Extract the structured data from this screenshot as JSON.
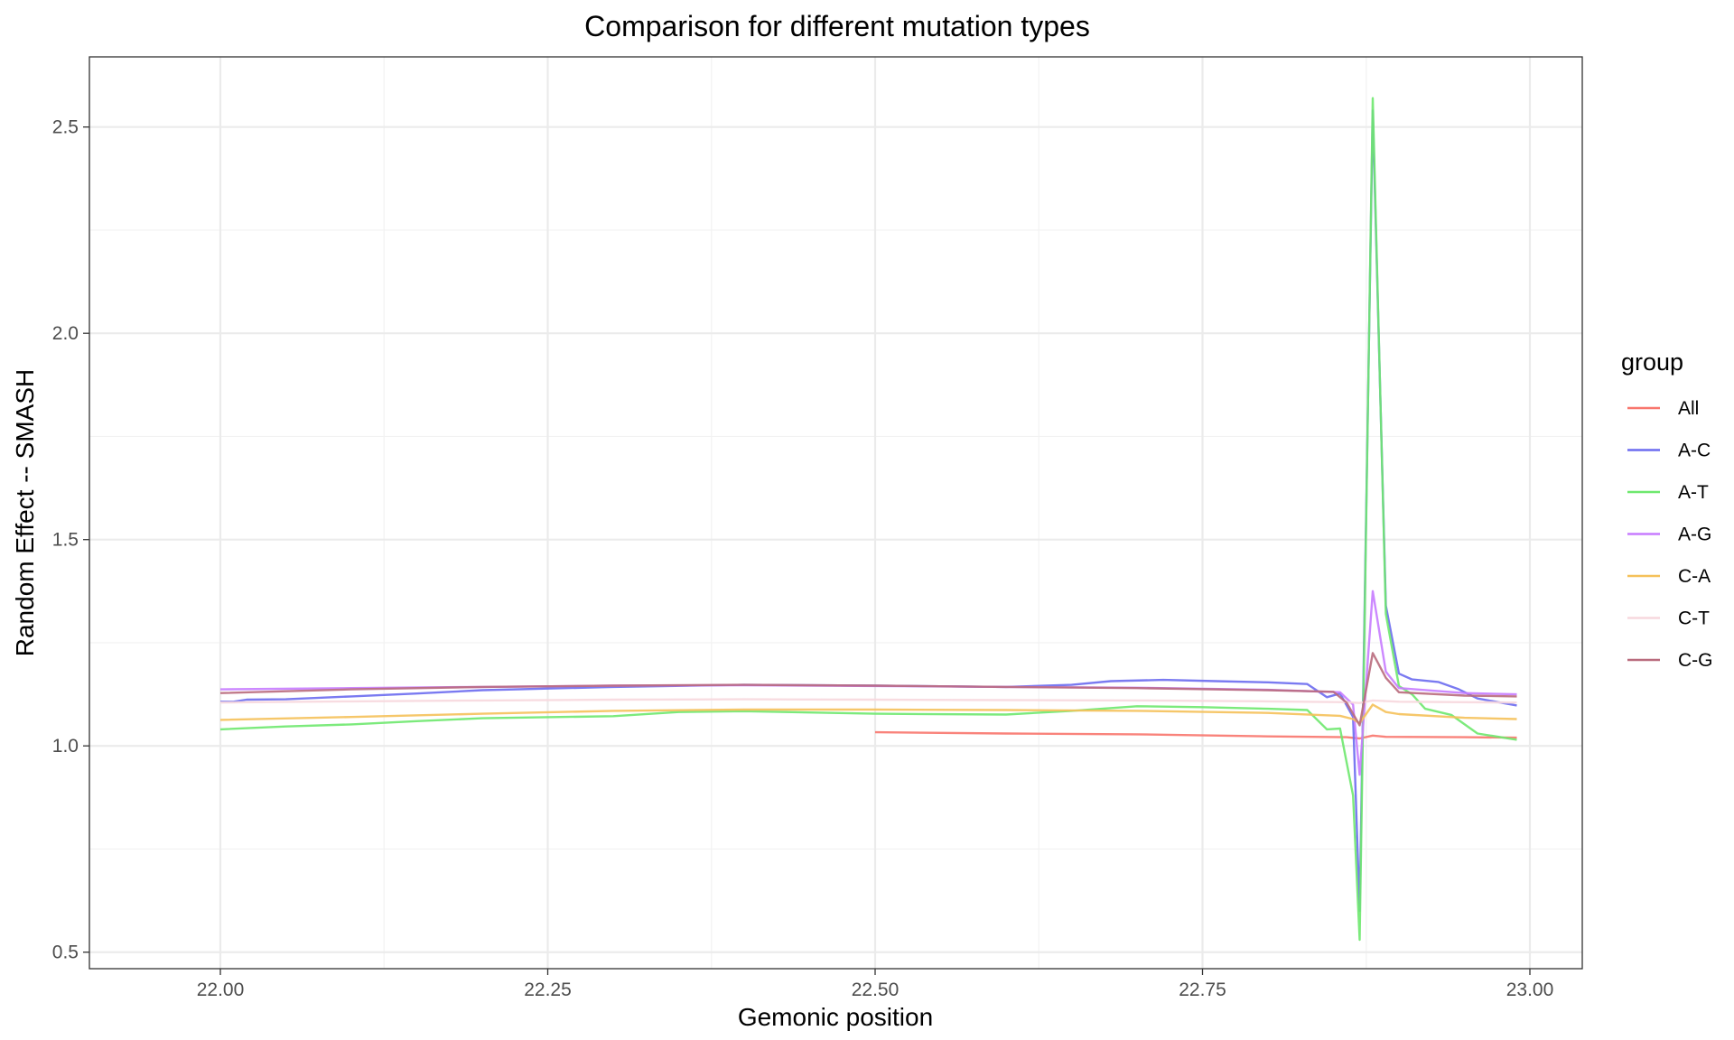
{
  "chart_data": {
    "type": "line",
    "title": "Comparison for different mutation types",
    "xlabel": "Gemonic position",
    "ylabel": "Random Effect -- SMASH",
    "xlim": [
      21.9,
      23.04
    ],
    "ylim": [
      0.46,
      2.67
    ],
    "x_ticks": [
      22.0,
      22.25,
      22.5,
      22.75,
      23.0
    ],
    "x_tick_labels": [
      "22.00",
      "22.25",
      "22.50",
      "22.75",
      "23.00"
    ],
    "y_ticks": [
      0.5,
      1.0,
      1.5,
      2.0,
      2.5
    ],
    "y_tick_labels": [
      "0.5",
      "1.0",
      "1.5",
      "2.0",
      "2.5"
    ],
    "grid": true,
    "legend": {
      "title": "group",
      "position": "right"
    },
    "series": [
      {
        "name": "All",
        "color": "#F8766D",
        "points": [
          [
            22.5,
            1.033
          ],
          [
            22.6,
            1.03
          ],
          [
            22.7,
            1.028
          ],
          [
            22.8,
            1.023
          ],
          [
            22.86,
            1.021
          ],
          [
            22.87,
            1.018
          ],
          [
            22.88,
            1.025
          ],
          [
            22.89,
            1.022
          ],
          [
            22.95,
            1.021
          ],
          [
            22.99,
            1.02
          ]
        ]
      },
      {
        "name": "A-C",
        "color": "#6C6CF0",
        "points": [
          [
            22.0,
            1.107
          ],
          [
            22.01,
            1.107
          ],
          [
            22.02,
            1.112
          ],
          [
            22.05,
            1.113
          ],
          [
            22.1,
            1.12
          ],
          [
            22.15,
            1.127
          ],
          [
            22.2,
            1.135
          ],
          [
            22.3,
            1.143
          ],
          [
            22.4,
            1.148
          ],
          [
            22.5,
            1.146
          ],
          [
            22.6,
            1.143
          ],
          [
            22.65,
            1.148
          ],
          [
            22.68,
            1.157
          ],
          [
            22.72,
            1.16
          ],
          [
            22.76,
            1.157
          ],
          [
            22.8,
            1.154
          ],
          [
            22.83,
            1.15
          ],
          [
            22.845,
            1.118
          ],
          [
            22.855,
            1.127
          ],
          [
            22.865,
            1.07
          ],
          [
            22.87,
            0.6
          ],
          [
            22.88,
            2.54
          ],
          [
            22.89,
            1.34
          ],
          [
            22.9,
            1.175
          ],
          [
            22.91,
            1.161
          ],
          [
            22.93,
            1.155
          ],
          [
            22.945,
            1.138
          ],
          [
            22.96,
            1.115
          ],
          [
            22.99,
            1.098
          ]
        ]
      },
      {
        "name": "A-T",
        "color": "#6EE86E",
        "points": [
          [
            22.0,
            1.04
          ],
          [
            22.05,
            1.047
          ],
          [
            22.1,
            1.052
          ],
          [
            22.15,
            1.06
          ],
          [
            22.2,
            1.067
          ],
          [
            22.3,
            1.072
          ],
          [
            22.35,
            1.082
          ],
          [
            22.4,
            1.084
          ],
          [
            22.5,
            1.078
          ],
          [
            22.6,
            1.076
          ],
          [
            22.65,
            1.085
          ],
          [
            22.7,
            1.096
          ],
          [
            22.75,
            1.094
          ],
          [
            22.8,
            1.09
          ],
          [
            22.83,
            1.087
          ],
          [
            22.845,
            1.04
          ],
          [
            22.855,
            1.042
          ],
          [
            22.865,
            0.88
          ],
          [
            22.87,
            0.53
          ],
          [
            22.88,
            2.57
          ],
          [
            22.89,
            1.32
          ],
          [
            22.9,
            1.145
          ],
          [
            22.91,
            1.125
          ],
          [
            22.92,
            1.09
          ],
          [
            22.94,
            1.075
          ],
          [
            22.96,
            1.03
          ],
          [
            22.99,
            1.015
          ]
        ]
      },
      {
        "name": "A-G",
        "color": "#C77CFF",
        "points": [
          [
            22.0,
            1.137
          ],
          [
            22.1,
            1.14
          ],
          [
            22.2,
            1.143
          ],
          [
            22.3,
            1.146
          ],
          [
            22.4,
            1.147
          ],
          [
            22.5,
            1.145
          ],
          [
            22.6,
            1.143
          ],
          [
            22.7,
            1.141
          ],
          [
            22.8,
            1.136
          ],
          [
            22.855,
            1.13
          ],
          [
            22.865,
            1.1
          ],
          [
            22.87,
            0.93
          ],
          [
            22.88,
            1.375
          ],
          [
            22.89,
            1.18
          ],
          [
            22.9,
            1.14
          ],
          [
            22.95,
            1.128
          ],
          [
            22.99,
            1.125
          ]
        ]
      },
      {
        "name": "C-A",
        "color": "#F5C15A",
        "points": [
          [
            22.0,
            1.063
          ],
          [
            22.1,
            1.07
          ],
          [
            22.2,
            1.078
          ],
          [
            22.3,
            1.085
          ],
          [
            22.4,
            1.088
          ],
          [
            22.5,
            1.088
          ],
          [
            22.6,
            1.087
          ],
          [
            22.7,
            1.085
          ],
          [
            22.8,
            1.08
          ],
          [
            22.855,
            1.073
          ],
          [
            22.865,
            1.065
          ],
          [
            22.87,
            1.055
          ],
          [
            22.88,
            1.1
          ],
          [
            22.89,
            1.082
          ],
          [
            22.9,
            1.077
          ],
          [
            22.95,
            1.068
          ],
          [
            22.99,
            1.065
          ]
        ]
      },
      {
        "name": "C-T",
        "color": "#F7D8DE",
        "points": [
          [
            22.0,
            1.105
          ],
          [
            22.1,
            1.108
          ],
          [
            22.2,
            1.11
          ],
          [
            22.3,
            1.112
          ],
          [
            22.4,
            1.113
          ],
          [
            22.5,
            1.112
          ],
          [
            22.6,
            1.111
          ],
          [
            22.7,
            1.11
          ],
          [
            22.8,
            1.108
          ],
          [
            22.86,
            1.106
          ],
          [
            22.87,
            1.104
          ],
          [
            22.88,
            1.11
          ],
          [
            22.9,
            1.107
          ],
          [
            22.99,
            1.105
          ]
        ]
      },
      {
        "name": "C-G",
        "color": "#B96B7D",
        "points": [
          [
            22.0,
            1.128
          ],
          [
            22.1,
            1.137
          ],
          [
            22.2,
            1.143
          ],
          [
            22.3,
            1.146
          ],
          [
            22.4,
            1.148
          ],
          [
            22.5,
            1.146
          ],
          [
            22.6,
            1.143
          ],
          [
            22.7,
            1.14
          ],
          [
            22.8,
            1.135
          ],
          [
            22.85,
            1.131
          ],
          [
            22.86,
            1.105
          ],
          [
            22.87,
            1.05
          ],
          [
            22.88,
            1.225
          ],
          [
            22.89,
            1.165
          ],
          [
            22.9,
            1.13
          ],
          [
            22.95,
            1.122
          ],
          [
            22.99,
            1.12
          ]
        ]
      }
    ]
  }
}
